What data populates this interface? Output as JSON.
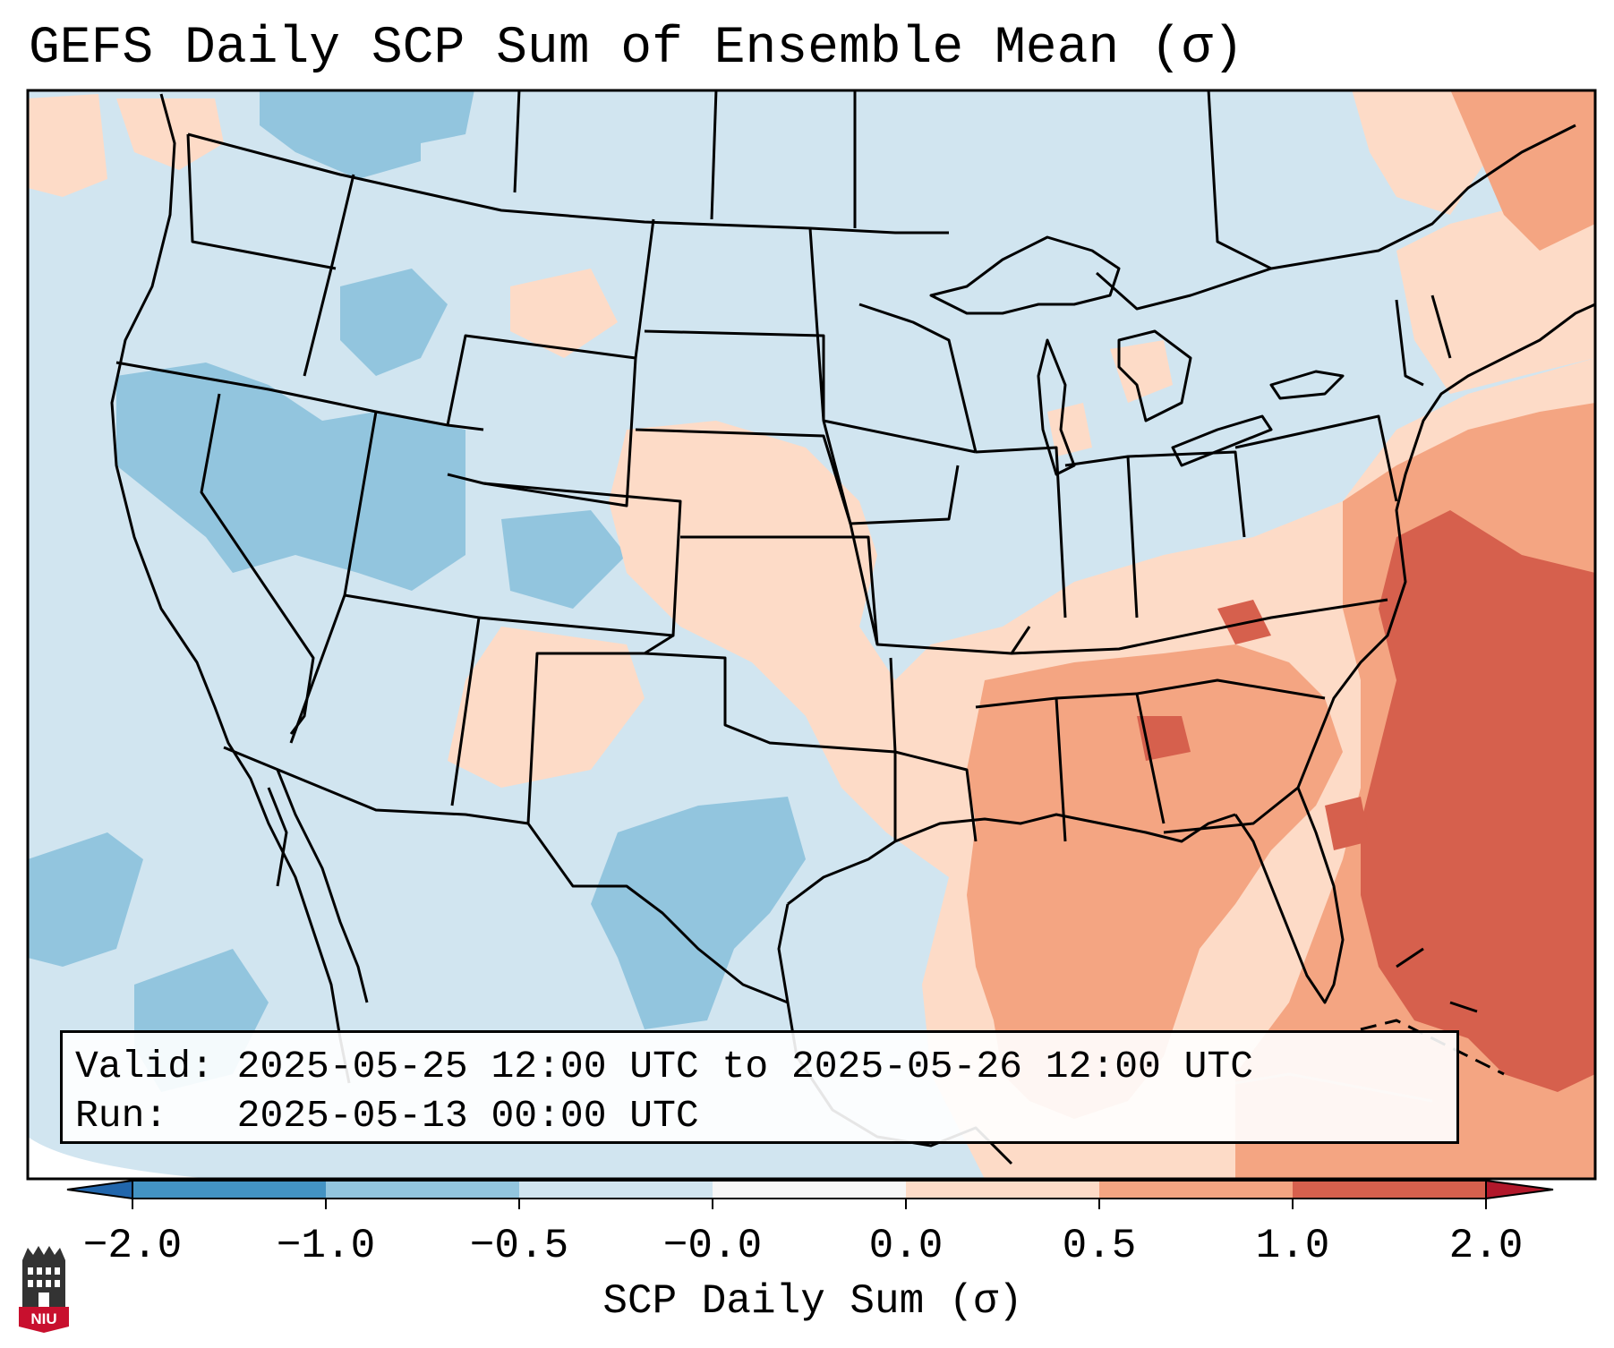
{
  "title": "GEFS Daily SCP Sum of Ensemble Mean (σ)",
  "info": {
    "valid_label": "Valid:",
    "valid_value": "2025-05-25 12:00 UTC to 2025-05-26 12:00 UTC",
    "run_label": "Run:",
    "run_value": "2025-05-13 00:00 UTC"
  },
  "colorbar": {
    "label": "SCP Daily Sum (σ)",
    "ticks": [
      "−2.0",
      "−1.0",
      "−0.5",
      "−0.0",
      "0.0",
      "0.5",
      "1.0",
      "2.0"
    ],
    "bins": [
      {
        "range": "< -2.0",
        "color": "#2166ac"
      },
      {
        "range": "-2.0 to -1.0",
        "color": "#4393c3"
      },
      {
        "range": "-1.0 to -0.5",
        "color": "#92c5de"
      },
      {
        "range": "-0.5 to -0.0",
        "color": "#d1e5f0"
      },
      {
        "range": "-0.0 to 0.0",
        "color": "#f7f7f7"
      },
      {
        "range": "0.0 to 0.5",
        "color": "#fddbc7"
      },
      {
        "range": "0.5 to 1.0",
        "color": "#f4a582"
      },
      {
        "range": "1.0 to 2.0",
        "color": "#d6604d"
      },
      {
        "range": "> 2.0",
        "color": "#b2182b"
      }
    ]
  },
  "logo": {
    "text": "NIU",
    "icon": "university-shield-icon",
    "color": "#c8102e"
  },
  "map": {
    "region": "Contiguous United States and surroundings",
    "background_color": "#d1e5f0",
    "anomaly_areas": [
      {
        "region": "Southeast US and western Atlantic",
        "sign": "positive",
        "max_bin": "1.0 to 2.0"
      },
      {
        "region": "Tennessee Valley and Deep South",
        "sign": "positive",
        "max_bin": "0.5 to 1.0"
      },
      {
        "region": "Central Plains",
        "sign": "positive",
        "max_bin": "0.0 to 0.5"
      },
      {
        "region": "Great Basin and Pacific Northwest",
        "sign": "negative",
        "max_bin": "-1.0 to -0.5"
      },
      {
        "region": "South Texas and northern Mexico",
        "sign": "negative",
        "max_bin": "-1.0 to -0.5"
      },
      {
        "region": "Eastern Pacific",
        "sign": "negative",
        "max_bin": "-1.0 to -0.5"
      }
    ]
  }
}
